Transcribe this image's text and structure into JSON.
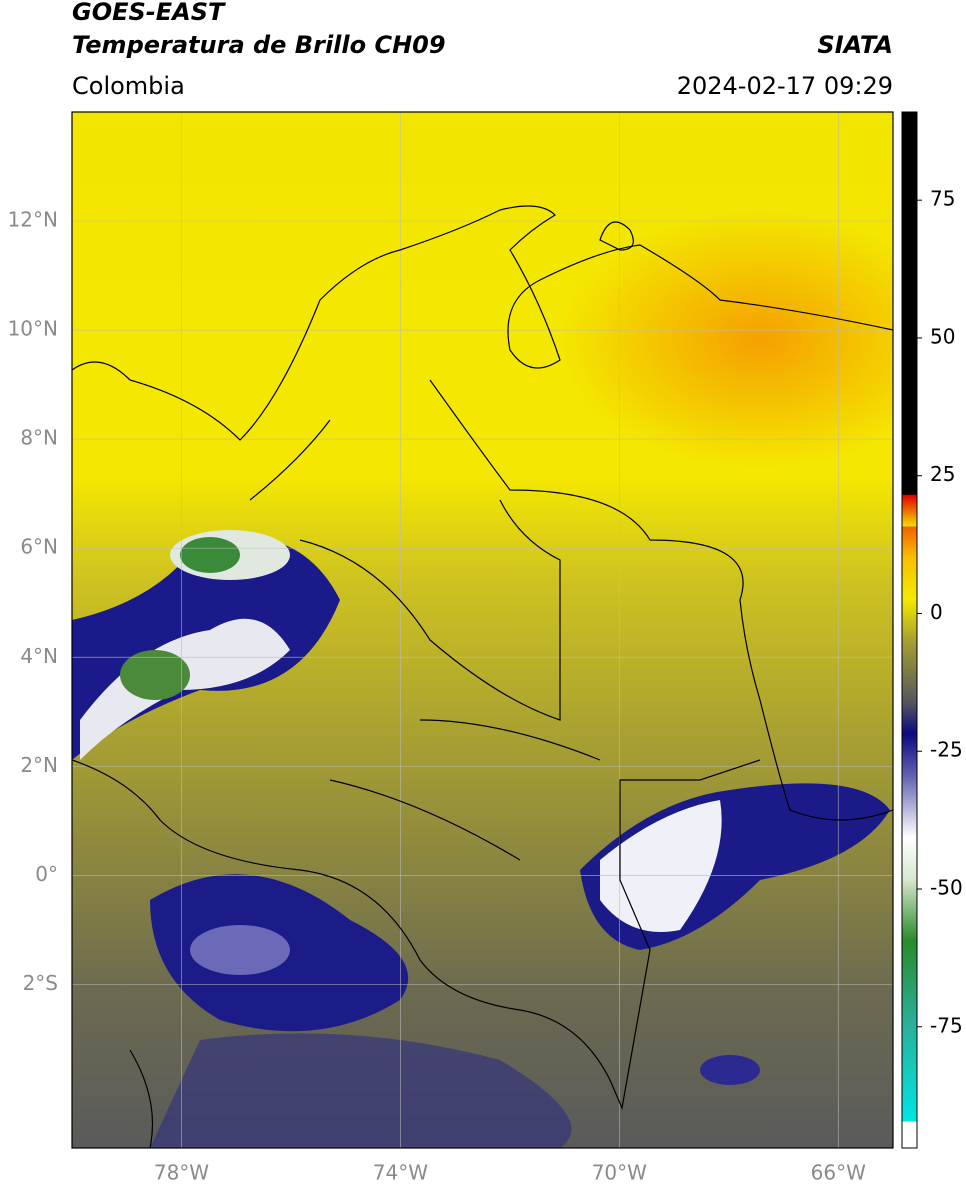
{
  "header": {
    "line1": "GOES-EAST",
    "title": "Temperatura de Brillo CH09",
    "source": "SIATA",
    "region": "Colombia",
    "datetime": "2024-02-17 09:29"
  },
  "map": {
    "xlim": [
      -80,
      -65
    ],
    "ylim": [
      -5,
      14
    ],
    "xticks": [
      {
        "value": -78,
        "label": "78°W"
      },
      {
        "value": -74,
        "label": "74°W"
      },
      {
        "value": -70,
        "label": "70°W"
      },
      {
        "value": -66,
        "label": "66°W"
      }
    ],
    "yticks": [
      {
        "value": -2,
        "label": "2°S"
      },
      {
        "value": 0,
        "label": "0°"
      },
      {
        "value": 2,
        "label": "2°N"
      },
      {
        "value": 4,
        "label": "4°N"
      },
      {
        "value": 6,
        "label": "6°N"
      },
      {
        "value": 8,
        "label": "8°N"
      },
      {
        "value": 10,
        "label": "10°N"
      },
      {
        "value": 12,
        "label": "12°N"
      }
    ]
  },
  "colorbar": {
    "lim": [
      -97,
      91
    ],
    "ticks": [
      75,
      50,
      25,
      0,
      -25,
      -50,
      -75
    ]
  }
}
